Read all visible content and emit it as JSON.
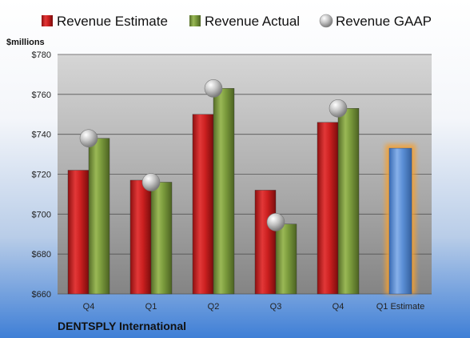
{
  "chart_data": {
    "type": "bar",
    "ylabel": "$millions",
    "footer": "DENTSPLY International",
    "categories": [
      "Q4",
      "Q1",
      "Q2",
      "Q3",
      "Q4",
      "Q1 Estimate"
    ],
    "ylim": [
      660,
      780
    ],
    "yticks": [
      660,
      680,
      700,
      720,
      740,
      760,
      780
    ],
    "ytick_labels": [
      "$660",
      "$680",
      "$700",
      "$720",
      "$740",
      "$760",
      "$780"
    ],
    "grid": true,
    "legend": "top",
    "series": [
      {
        "name": "Revenue Estimate",
        "kind": "bar",
        "color": "#cc2020",
        "values": [
          722,
          717,
          750,
          712,
          746,
          null
        ]
      },
      {
        "name": "Revenue Actual",
        "kind": "bar",
        "color": "#7a9a3c",
        "values": [
          738,
          716,
          763,
          695,
          753,
          null
        ]
      },
      {
        "name": "Revenue GAAP",
        "kind": "marker",
        "color": "#b8b8b8",
        "values": [
          738,
          716,
          763,
          696,
          753,
          null
        ]
      }
    ],
    "estimate_bar": {
      "category_index": 5,
      "value": 733,
      "color": "#5b8fd6",
      "glow": "#f5a030"
    }
  }
}
